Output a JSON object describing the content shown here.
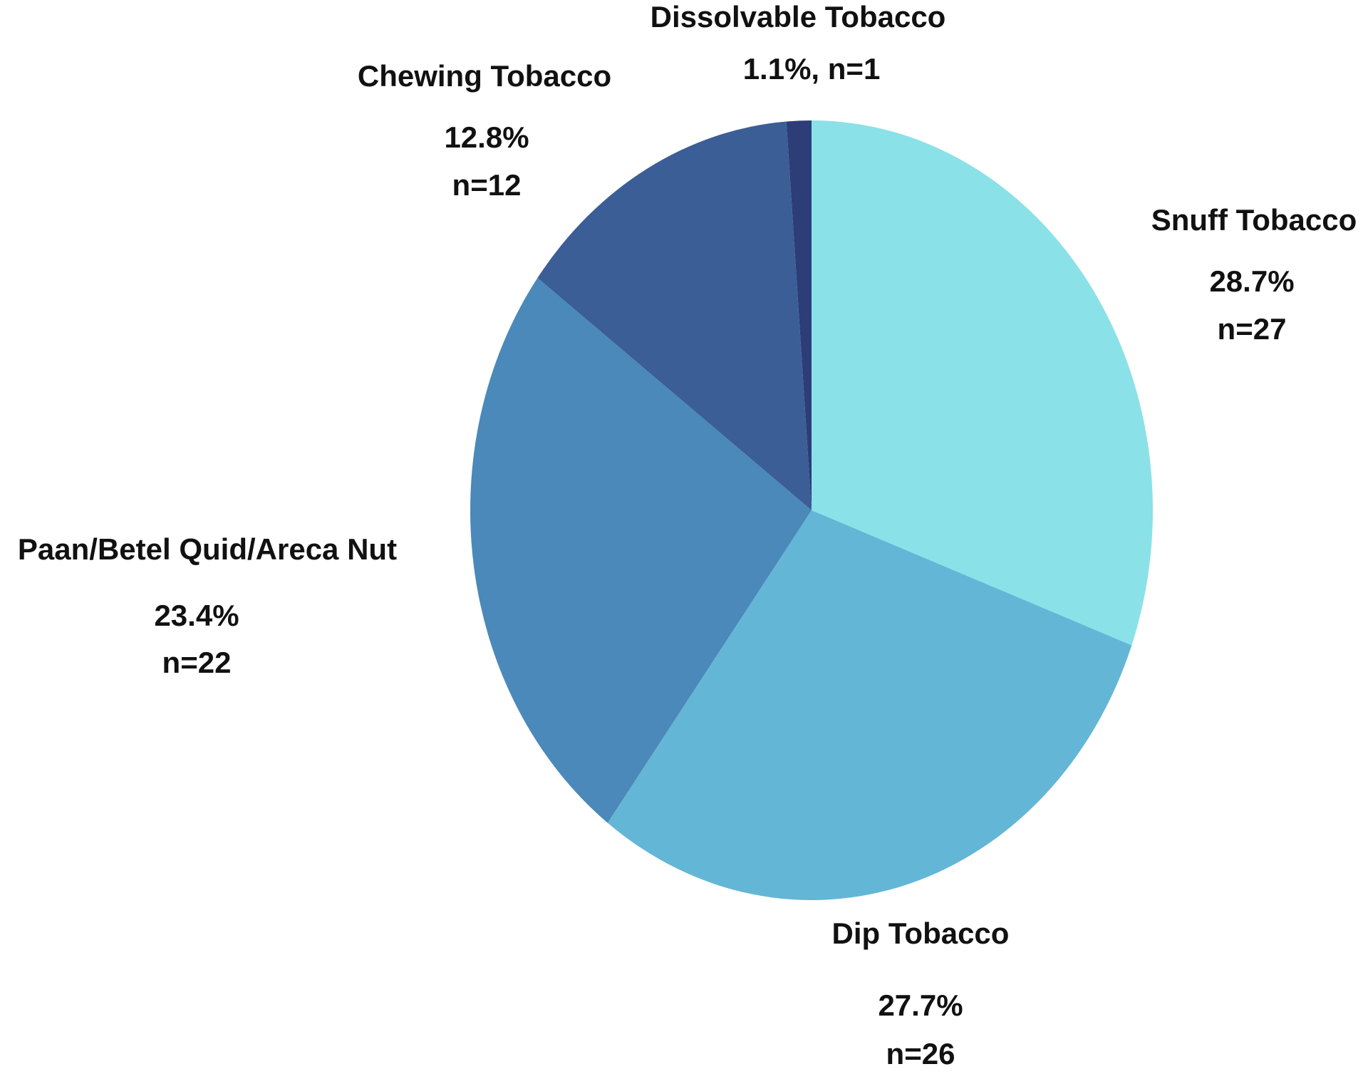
{
  "chart_data": {
    "type": "pie",
    "categories": [
      "Snuff Tobacco",
      "Dip Tobacco",
      "Paan/Betel Quid/Areca Nut",
      "Chewing Tobacco",
      "Dissolvable Tobacco"
    ],
    "values": [
      28.7,
      27.7,
      23.4,
      12.8,
      1.1
    ],
    "value_labels": [
      "28.7%",
      "27.7%",
      "23.4%",
      "12.8%",
      "1.1%,"
    ],
    "counts": [
      27,
      26,
      22,
      12,
      1
    ],
    "count_labels": [
      "n=27",
      "n=26",
      "n=22",
      "n=12",
      "n=1"
    ],
    "colors": [
      "#8be1e8",
      "#64b6d6",
      "#4a89b9",
      "#3b5e97",
      "#2d3d78"
    ]
  }
}
